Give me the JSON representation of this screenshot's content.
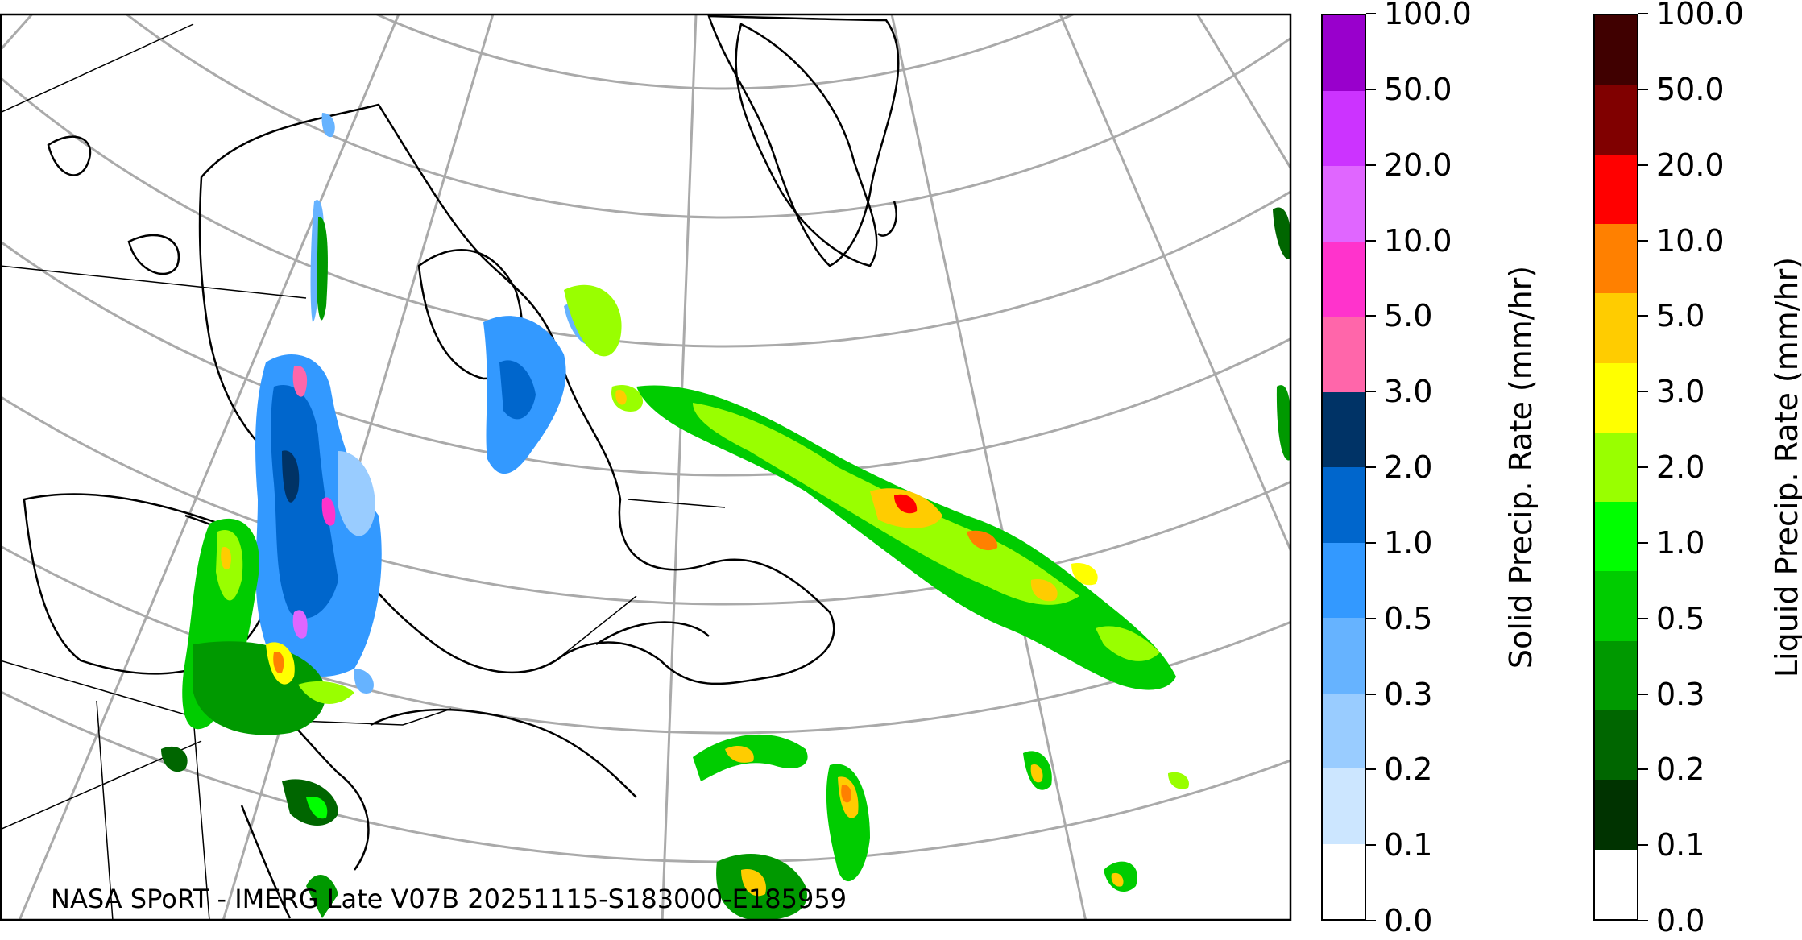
{
  "caption": "NASA SPoRT - IMERG Late V07B 20251115-S183000-E185959",
  "colorbars": [
    {
      "title": "Solid Precip. Rate (mm/hr)",
      "colors": [
        "#ffffff",
        "#cce6ff",
        "#99ccff",
        "#66b3ff",
        "#3399ff",
        "#0066cc",
        "#003366",
        "#ff66aa",
        "#ff33cc",
        "#e066ff",
        "#cc33ff",
        "#9900cc"
      ],
      "tick_labels": [
        "0.0",
        "0.1",
        "0.2",
        "0.3",
        "0.5",
        "1.0",
        "2.0",
        "3.0",
        "5.0",
        "10.0",
        "20.0",
        "50.0",
        "100.0"
      ]
    },
    {
      "title": "Liquid Precip. Rate (mm/hr)",
      "colors": [
        "#ffffff",
        "#003300",
        "#006600",
        "#009900",
        "#00cc00",
        "#00ff00",
        "#99ff00",
        "#ffff00",
        "#ffcc00",
        "#ff8000",
        "#ff0000",
        "#800000",
        "#400000"
      ],
      "tick_labels": [
        "0.0",
        "0.1",
        "0.2",
        "0.3",
        "0.5",
        "1.0",
        "2.0",
        "3.0",
        "5.0",
        "10.0",
        "20.0",
        "50.0",
        "100.0"
      ]
    }
  ],
  "map": {
    "projection": "polar-stereographic",
    "region": "Eastern Canada, Greenland and North Atlantic",
    "gridline_color": "#aaaaaa",
    "coastline_color": "#000000"
  }
}
